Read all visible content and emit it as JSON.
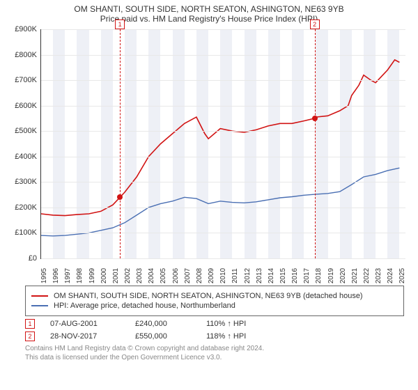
{
  "title": {
    "line1": "OM SHANTI, SOUTH SIDE, NORTH SEATON, ASHINGTON, NE63 9YB",
    "line2": "Price paid vs. HM Land Registry's House Price Index (HPI)"
  },
  "chart": {
    "background_color": "#ffffff",
    "band_color": "#eef0f6",
    "grid_color": "#e8e8e8",
    "axis_color": "#333333",
    "x_years": [
      1995,
      1996,
      1997,
      1998,
      1999,
      2000,
      2001,
      2002,
      2003,
      2004,
      2005,
      2006,
      2007,
      2008,
      2009,
      2010,
      2011,
      2012,
      2013,
      2014,
      2015,
      2016,
      2017,
      2018,
      2019,
      2020,
      2021,
      2022,
      2023,
      2024,
      2025
    ],
    "x_min": 1995,
    "x_max": 2025.5,
    "y_min": 0,
    "y_max": 900,
    "y_ticks": [
      0,
      100,
      200,
      300,
      400,
      500,
      600,
      700,
      800,
      900
    ],
    "y_tick_prefix": "£",
    "y_tick_suffix": "K",
    "axis_fontsize": 11,
    "series": [
      {
        "color": "#d11313",
        "width": 1.6,
        "label": "OM SHANTI, SOUTH SIDE, NORTH SEATON, ASHINGTON, NE63 9YB (detached house)",
        "data": [
          [
            1995,
            175
          ],
          [
            1996,
            170
          ],
          [
            1997,
            168
          ],
          [
            1998,
            172
          ],
          [
            1999,
            175
          ],
          [
            2000,
            185
          ],
          [
            2001,
            210
          ],
          [
            2001.6,
            240
          ],
          [
            2002,
            260
          ],
          [
            2003,
            320
          ],
          [
            2004,
            400
          ],
          [
            2005,
            450
          ],
          [
            2006,
            490
          ],
          [
            2007,
            530
          ],
          [
            2008,
            555
          ],
          [
            2008.7,
            490
          ],
          [
            2009,
            470
          ],
          [
            2010,
            510
          ],
          [
            2011,
            500
          ],
          [
            2012,
            495
          ],
          [
            2013,
            505
          ],
          [
            2014,
            520
          ],
          [
            2015,
            530
          ],
          [
            2016,
            530
          ],
          [
            2017,
            540
          ],
          [
            2017.9,
            550
          ],
          [
            2018,
            555
          ],
          [
            2019,
            560
          ],
          [
            2020,
            580
          ],
          [
            2020.7,
            600
          ],
          [
            2021,
            640
          ],
          [
            2021.6,
            680
          ],
          [
            2022,
            720
          ],
          [
            2022.6,
            700
          ],
          [
            2023,
            690
          ],
          [
            2023.6,
            720
          ],
          [
            2024,
            740
          ],
          [
            2024.6,
            780
          ],
          [
            2025,
            770
          ]
        ]
      },
      {
        "color": "#4a6fb3",
        "width": 1.4,
        "label": "HPI: Average price, detached house, Northumberland",
        "data": [
          [
            1995,
            90
          ],
          [
            1996,
            88
          ],
          [
            1997,
            90
          ],
          [
            1998,
            95
          ],
          [
            1999,
            100
          ],
          [
            2000,
            110
          ],
          [
            2001,
            120
          ],
          [
            2002,
            140
          ],
          [
            2003,
            170
          ],
          [
            2004,
            200
          ],
          [
            2005,
            215
          ],
          [
            2006,
            225
          ],
          [
            2007,
            240
          ],
          [
            2008,
            235
          ],
          [
            2009,
            215
          ],
          [
            2010,
            225
          ],
          [
            2011,
            220
          ],
          [
            2012,
            218
          ],
          [
            2013,
            222
          ],
          [
            2014,
            230
          ],
          [
            2015,
            238
          ],
          [
            2016,
            242
          ],
          [
            2017,
            248
          ],
          [
            2018,
            252
          ],
          [
            2019,
            255
          ],
          [
            2020,
            262
          ],
          [
            2021,
            290
          ],
          [
            2022,
            320
          ],
          [
            2023,
            330
          ],
          [
            2024,
            345
          ],
          [
            2025,
            355
          ]
        ]
      }
    ],
    "sale_points": [
      {
        "idx": "1",
        "x": 2001.6,
        "y": 240,
        "color": "#d11313"
      },
      {
        "idx": "2",
        "x": 2017.9,
        "y": 550,
        "color": "#d11313"
      }
    ]
  },
  "points_table": [
    {
      "idx": "1",
      "date": "07-AUG-2001",
      "price": "£240,000",
      "pct": "110% ↑ HPI",
      "color": "#d11313"
    },
    {
      "idx": "2",
      "date": "28-NOV-2017",
      "price": "£550,000",
      "pct": "118% ↑ HPI",
      "color": "#d11313"
    }
  ],
  "legend": {
    "border_color": "#666666"
  },
  "footer": {
    "line1": "Contains HM Land Registry data © Crown copyright and database right 2024.",
    "line2": "This data is licensed under the Open Government Licence v3.0."
  }
}
